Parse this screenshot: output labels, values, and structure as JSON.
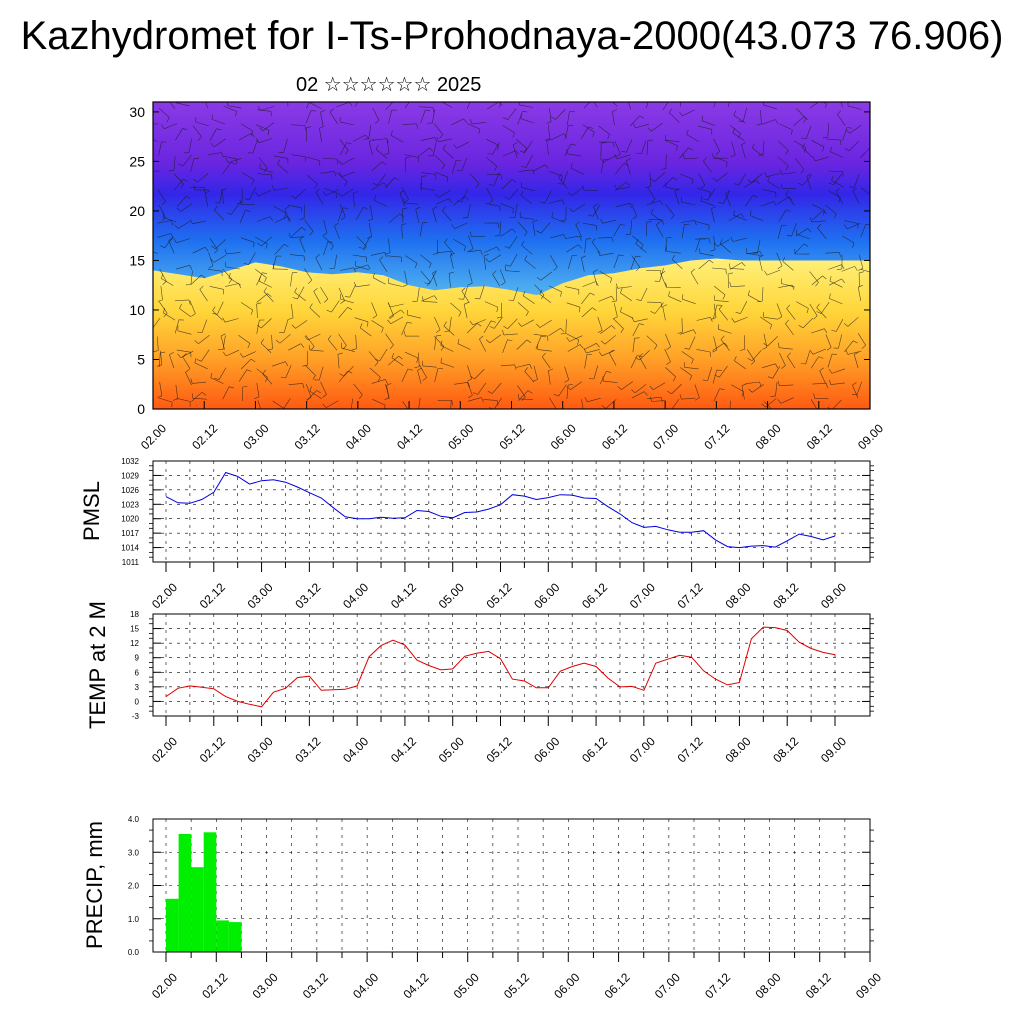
{
  "header": {
    "title": "Kazhydromet for I-Ts-Prohodnaya-2000(43.073 76.906)",
    "date_label": "02 ☆☆☆☆☆☆ 2025"
  },
  "colors": {
    "pmsl_line": "#0000dd",
    "temp_line": "#dd0000",
    "precip_bar": "#00ee00",
    "cross_section_top": "#7a2be0",
    "cross_section_mid": "#2266ee",
    "cross_section_light": "#c9e4f4",
    "cross_section_yellow": "#ffe97a",
    "cross_section_bottom": "#ff6a1a"
  },
  "chart_data": [
    {
      "type": "heatmap",
      "name": "cross-section",
      "ylim": [
        0,
        31
      ],
      "yticks": [
        "0",
        "5",
        "10",
        "15",
        "20",
        "25",
        "30"
      ],
      "x_ticks": [
        "02.00",
        "02.12",
        "03.00",
        "03.12",
        "04.00",
        "04.12",
        "05.00",
        "05.12",
        "06.00",
        "06.12",
        "07.00",
        "07.12",
        "08.00",
        "08.12",
        "09.00"
      ],
      "warm_layer_top": [
        {
          "t": 0,
          "y": 14.0
        },
        {
          "t": 6,
          "y": 13.6
        },
        {
          "t": 12,
          "y": 13.2
        },
        {
          "t": 18,
          "y": 14.0
        },
        {
          "t": 24,
          "y": 14.8
        },
        {
          "t": 30,
          "y": 14.4
        },
        {
          "t": 36,
          "y": 13.8
        },
        {
          "t": 42,
          "y": 13.6
        },
        {
          "t": 48,
          "y": 13.8
        },
        {
          "t": 54,
          "y": 13.5
        },
        {
          "t": 60,
          "y": 12.5
        },
        {
          "t": 66,
          "y": 12.0
        },
        {
          "t": 72,
          "y": 12.3
        },
        {
          "t": 78,
          "y": 12.4
        },
        {
          "t": 84,
          "y": 12.0
        },
        {
          "t": 90,
          "y": 11.5
        },
        {
          "t": 96,
          "y": 12.7
        },
        {
          "t": 102,
          "y": 13.5
        },
        {
          "t": 108,
          "y": 13.7
        },
        {
          "t": 114,
          "y": 14.2
        },
        {
          "t": 120,
          "y": 14.5
        },
        {
          "t": 126,
          "y": 15.0
        },
        {
          "t": 132,
          "y": 15.2
        },
        {
          "t": 138,
          "y": 15.0
        },
        {
          "t": 144,
          "y": 15.0
        },
        {
          "t": 150,
          "y": 15.0
        },
        {
          "t": 156,
          "y": 15.0
        },
        {
          "t": 162,
          "y": 15.0
        },
        {
          "t": 168,
          "y": 15.0
        }
      ]
    },
    {
      "type": "line",
      "name": "pmsl",
      "ylabel": "PMSL",
      "ylim": [
        1011,
        1032
      ],
      "yticks": [
        "1011",
        "1014",
        "1017",
        "1020",
        "1023",
        "1026",
        "1029",
        "1032"
      ],
      "x_ticks": [
        "02.00",
        "02.12",
        "03.00",
        "03.12",
        "04.00",
        "04.12",
        "05.00",
        "05.12",
        "06.00",
        "06.12",
        "07.00",
        "07.12",
        "08.00",
        "08.12",
        "09.00"
      ],
      "t_hours": [
        0,
        3,
        6,
        9,
        12,
        15,
        18,
        21,
        24,
        27,
        30,
        33,
        36,
        39,
        42,
        45,
        48,
        51,
        54,
        57,
        60,
        63,
        66,
        69,
        72,
        75,
        78,
        81,
        84,
        87,
        90,
        93,
        96,
        99,
        102,
        105,
        108,
        111,
        114,
        117,
        120,
        123,
        126,
        129,
        132,
        135,
        138,
        141,
        144,
        147,
        150,
        153,
        156,
        159,
        162,
        165,
        168
      ],
      "values": [
        1024.6,
        1023.3,
        1023.2,
        1024.0,
        1025.5,
        1029.6,
        1028.8,
        1027.2,
        1027.9,
        1028.1,
        1027.6,
        1026.6,
        1025.4,
        1024.3,
        1022.3,
        1020.4,
        1020.0,
        1020.0,
        1020.3,
        1020.1,
        1020.2,
        1021.7,
        1021.5,
        1020.5,
        1020.2,
        1021.3,
        1021.4,
        1022.0,
        1022.9,
        1025.0,
        1024.7,
        1024.0,
        1024.4,
        1025.0,
        1024.9,
        1024.3,
        1024.2,
        1022.5,
        1021.0,
        1019.2,
        1018.2,
        1018.4,
        1017.7,
        1017.2,
        1017.2,
        1017.5,
        1015.6,
        1014.2,
        1014.0,
        1014.3,
        1014.4,
        1014.1,
        1015.4,
        1016.8,
        1016.3,
        1015.6,
        1016.4
      ]
    },
    {
      "type": "line",
      "name": "temp",
      "ylabel": "TEMP at 2 M",
      "ylim": [
        -3,
        18
      ],
      "yticks": [
        "-3",
        "0",
        "3",
        "6",
        "9",
        "12",
        "15",
        "18"
      ],
      "x_ticks": [
        "02.00",
        "02.12",
        "03.00",
        "03.12",
        "04.00",
        "04.12",
        "05.00",
        "05.12",
        "06.00",
        "06.12",
        "07.00",
        "07.12",
        "08.00",
        "08.12",
        "09.00"
      ],
      "t_hours": [
        0,
        3,
        6,
        9,
        12,
        15,
        18,
        21,
        24,
        27,
        30,
        33,
        36,
        39,
        42,
        45,
        48,
        51,
        54,
        57,
        60,
        63,
        66,
        69,
        72,
        75,
        78,
        81,
        84,
        87,
        90,
        93,
        96,
        99,
        102,
        105,
        108,
        111,
        114,
        117,
        120,
        123,
        126,
        129,
        132,
        135,
        138,
        141,
        144,
        147,
        150,
        153,
        156,
        159,
        162,
        165,
        168
      ],
      "values": [
        1.0,
        2.7,
        3.2,
        2.9,
        2.6,
        1.0,
        0.0,
        -0.6,
        -1.1,
        1.9,
        2.7,
        4.9,
        5.2,
        2.3,
        2.4,
        2.5,
        3.2,
        9.2,
        11.5,
        12.6,
        11.6,
        8.5,
        7.4,
        6.5,
        6.7,
        9.3,
        9.9,
        10.3,
        8.8,
        4.6,
        4.2,
        2.8,
        2.8,
        6.2,
        7.2,
        7.9,
        7.2,
        4.8,
        3.0,
        3.1,
        2.3,
        7.9,
        8.7,
        9.5,
        9.1,
        6.3,
        4.6,
        3.4,
        3.9,
        12.9,
        15.3,
        15.2,
        14.6,
        12.2,
        10.9,
        10.1,
        9.6
      ]
    },
    {
      "type": "bar",
      "name": "precip",
      "ylabel": "PRECIP, mm",
      "ylim": [
        0,
        4.0
      ],
      "yticks": [
        "0.0",
        "1.0",
        "2.0",
        "3.0",
        "4.0"
      ],
      "x_ticks": [
        "02.00",
        "02.12",
        "03.00",
        "03.12",
        "04.00",
        "04.12",
        "05.00",
        "05.12",
        "06.00",
        "06.12",
        "07.00",
        "07.12",
        "08.00",
        "08.12",
        "09.00"
      ],
      "t_start_hours": [
        0,
        3,
        6,
        9,
        12,
        15,
        18
      ],
      "values": [
        1.6,
        3.55,
        2.55,
        3.6,
        0.95,
        0.9,
        0.0
      ]
    }
  ]
}
